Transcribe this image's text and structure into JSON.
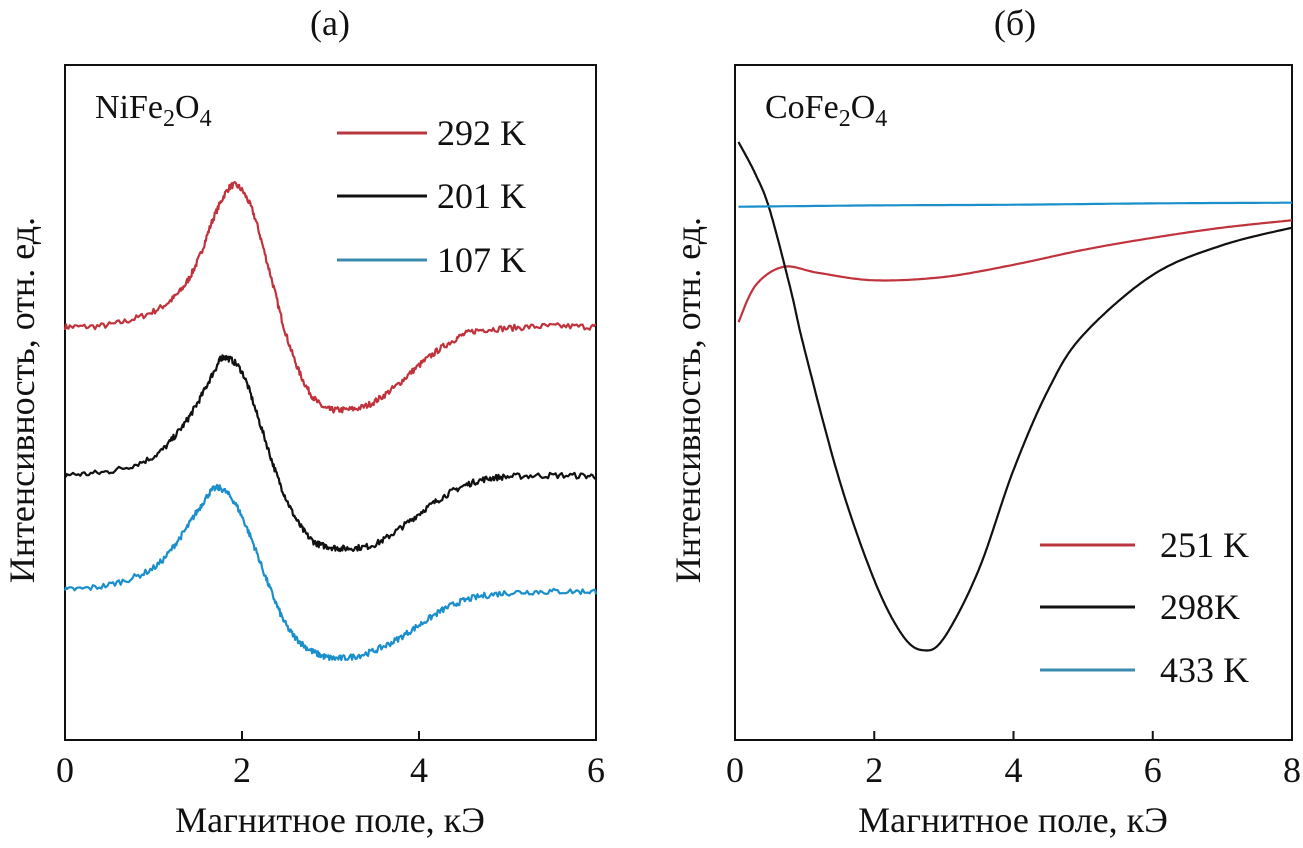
{
  "chart_data": [
    {
      "type": "line",
      "panel_label": "(a)",
      "sample": {
        "base": "NiFe",
        "sub1": "2",
        "mid": "O",
        "sub2": "4"
      },
      "xlabel": "Магнитное поле, кЭ",
      "ylabel": "Интенсивность, отн. ед.",
      "xlim": [
        0,
        6
      ],
      "ylim": [
        0,
        100
      ],
      "xticks": [
        "0",
        "2",
        "4",
        "6"
      ],
      "xtick_values": [
        0,
        2,
        4,
        6
      ],
      "grid": false,
      "legend_placement": "top-right",
      "series": [
        {
          "name": "292 K",
          "color": "#c0323c",
          "legend_color": "#b8363e",
          "noisy": true,
          "x": [
            0,
            0.5,
            1.0,
            1.3,
            1.5,
            1.7,
            1.9,
            2.1,
            2.3,
            2.5,
            2.7,
            2.9,
            3.1,
            3.4,
            3.7,
            4.0,
            4.3,
            4.6,
            5.0,
            5.5,
            6.0
          ],
          "y": [
            61.2,
            61.5,
            63.5,
            66.5,
            71,
            78,
            82.2,
            79,
            70,
            60,
            53,
            49.5,
            48.9,
            49.5,
            52,
            55.5,
            58.5,
            60.5,
            61,
            61.3,
            61.2
          ]
        },
        {
          "name": "201 K",
          "color": "#111111",
          "legend_color": "#111111",
          "noisy": true,
          "x": [
            0,
            0.5,
            1.0,
            1.3,
            1.5,
            1.7,
            1.8,
            2.0,
            2.2,
            2.4,
            2.6,
            2.8,
            3.0,
            3.2,
            3.5,
            3.8,
            4.1,
            4.4,
            4.7,
            5.0,
            5.5,
            6.0
          ],
          "y": [
            39.3,
            39.8,
            42,
            46,
            50,
            55,
            56.7,
            54.5,
            47,
            39,
            33,
            29.5,
            28.6,
            28.4,
            29,
            31.5,
            34.5,
            37,
            38.5,
            39,
            39.2,
            39.1
          ]
        },
        {
          "name": "107 K",
          "color": "#1a8fcc",
          "legend_color": "#3a8bb0",
          "noisy": true,
          "x": [
            0,
            0.5,
            1.0,
            1.3,
            1.5,
            1.7,
            1.9,
            2.1,
            2.3,
            2.5,
            2.7,
            2.9,
            3.1,
            3.4,
            3.7,
            4.0,
            4.3,
            4.6,
            5.0,
            5.5,
            6.0
          ],
          "y": [
            22.2,
            23,
            25.5,
            30,
            34,
            37.3,
            35.5,
            30,
            23,
            17,
            14,
            12.5,
            12.1,
            12.8,
            14.5,
            17,
            19.5,
            21,
            21.8,
            22,
            22
          ]
        }
      ]
    },
    {
      "type": "line",
      "panel_label": "(б)",
      "sample": {
        "base": "CoFe",
        "sub1": "2",
        "mid": "O",
        "sub2": "4"
      },
      "xlabel": "Магнитное поле, кЭ",
      "ylabel": "Интенсивность, отн. ед.",
      "xlim": [
        0,
        8
      ],
      "ylim": [
        0,
        100
      ],
      "xticks": [
        "0",
        "2",
        "4",
        "6",
        "8"
      ],
      "xtick_values": [
        0,
        2,
        4,
        6,
        8
      ],
      "grid": false,
      "legend_placement": "bottom-right",
      "series": [
        {
          "name": "251 K",
          "color": "#c0323c",
          "legend_color": "#b8363e",
          "noisy": false,
          "x": [
            0.05,
            0.3,
            0.7,
            1.2,
            2.0,
            3.0,
            4.0,
            5.0,
            6.0,
            7.0,
            8.0
          ],
          "y": [
            61.9,
            67.4,
            70.1,
            69.2,
            68.1,
            68.6,
            70.4,
            72.6,
            74.4,
            75.9,
            77
          ]
        },
        {
          "name": "298K",
          "color": "#111111",
          "legend_color": "#111111",
          "noisy": false,
          "x": [
            0.05,
            0.3,
            0.5,
            0.8,
            1.0,
            1.5,
            2.0,
            2.4,
            2.7,
            3.0,
            3.5,
            4.0,
            4.5,
            5.0,
            6.0,
            7.0,
            8.0
          ],
          "y": [
            88.6,
            83.7,
            78.5,
            66.7,
            57.8,
            38.5,
            23.7,
            15.6,
            13.3,
            15.1,
            25.2,
            40,
            51.9,
            60,
            68.9,
            73.3,
            75.9
          ]
        },
        {
          "name": "433 K",
          "color": "#1a8fcc",
          "legend_color": "#3a8bb0",
          "noisy": false,
          "x": [
            0.05,
            2,
            4,
            6,
            8
          ],
          "y": [
            79,
            79.2,
            79.3,
            79.5,
            79.6
          ]
        }
      ]
    }
  ]
}
